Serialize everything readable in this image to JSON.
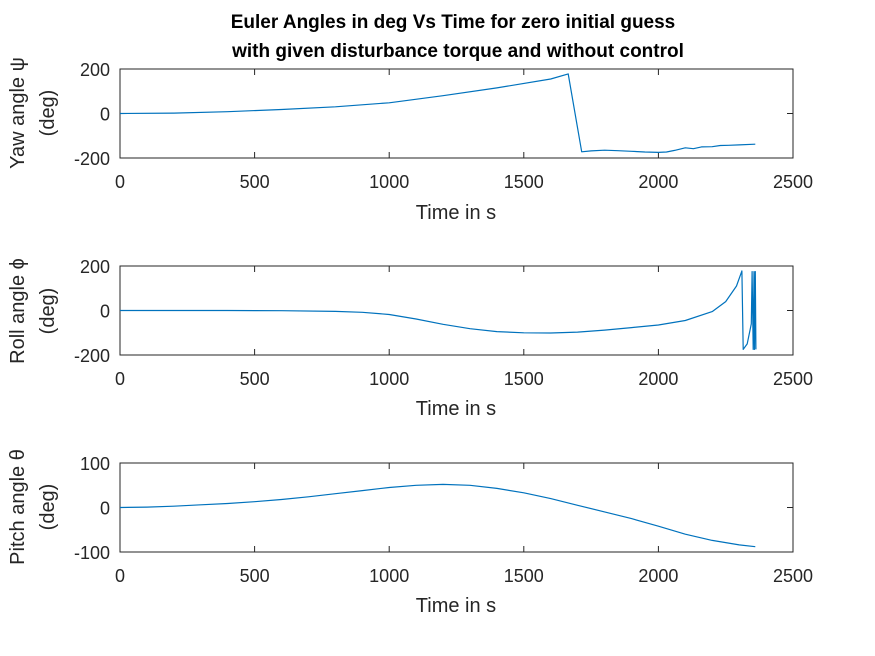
{
  "figure": {
    "title_line1": "Euler Angles in deg Vs Time for zero initial guess",
    "title_line2": "with given disturbance torque and without control"
  },
  "colors": {
    "series": "#0072BD",
    "axis": "#262626",
    "background": "#ffffff"
  },
  "chart_data": [
    {
      "type": "line",
      "ylabel_line1": "Yaw angle ψ",
      "ylabel_line2": "(deg)",
      "xlabel": "Time in s",
      "xlim": [
        0,
        2500
      ],
      "ylim": [
        -200,
        200
      ],
      "xticks": [
        0,
        500,
        1000,
        1500,
        2000,
        2500
      ],
      "yticks": [
        200,
        0,
        -200
      ],
      "grid": false,
      "series": [
        {
          "x": [
            0,
            200,
            400,
            600,
            800,
            1000,
            1200,
            1400,
            1600,
            1665,
            1715,
            1750,
            1800,
            1850,
            1900,
            1950,
            2000,
            2030,
            2060,
            2100,
            2130,
            2160,
            2200,
            2230,
            2260,
            2300,
            2360
          ],
          "y": [
            0,
            2,
            8,
            18,
            30,
            48,
            80,
            115,
            155,
            178,
            -172,
            -168,
            -165,
            -167,
            -170,
            -173,
            -175,
            -173,
            -166,
            -154,
            -158,
            -150,
            -149,
            -144,
            -143,
            -141,
            -138
          ]
        }
      ]
    },
    {
      "type": "line",
      "ylabel_line1": "Roll angle ϕ",
      "ylabel_line2": "(deg)",
      "xlabel": "Time in s",
      "xlim": [
        0,
        2500
      ],
      "ylim": [
        -200,
        200
      ],
      "xticks": [
        0,
        500,
        1000,
        1500,
        2000,
        2500
      ],
      "yticks": [
        200,
        0,
        -200
      ],
      "grid": false,
      "series": [
        {
          "x": [
            0,
            200,
            400,
            600,
            800,
            900,
            1000,
            1100,
            1200,
            1300,
            1400,
            1500,
            1600,
            1700,
            1800,
            1900,
            2000,
            2100,
            2200,
            2250,
            2290,
            2310,
            2315,
            2330,
            2345,
            2348,
            2352,
            2355,
            2357,
            2360,
            2362
          ],
          "y": [
            0,
            0,
            0,
            -1,
            -4,
            -8,
            -18,
            -38,
            -62,
            -82,
            -95,
            -100,
            -101,
            -97,
            -88,
            -77,
            -65,
            -45,
            -5,
            40,
            110,
            178,
            -175,
            -150,
            -60,
            175,
            -175,
            175,
            -175,
            175,
            -175
          ]
        }
      ]
    },
    {
      "type": "line",
      "ylabel_line1": "Pitch angle θ",
      "ylabel_line2": "(deg)",
      "xlabel": "Time in s",
      "xlim": [
        0,
        2500
      ],
      "ylim": [
        -100,
        100
      ],
      "xticks": [
        0,
        500,
        1000,
        1500,
        2000,
        2500
      ],
      "yticks": [
        100,
        0,
        -100
      ],
      "grid": false,
      "series": [
        {
          "x": [
            0,
            100,
            200,
            300,
            400,
            500,
            600,
            700,
            800,
            900,
            1000,
            1100,
            1200,
            1300,
            1400,
            1500,
            1600,
            1700,
            1800,
            1900,
            2000,
            2100,
            2200,
            2300,
            2360
          ],
          "y": [
            0,
            1,
            3,
            6,
            9,
            13,
            18,
            24,
            31,
            38,
            45,
            50,
            52,
            50,
            43,
            33,
            20,
            5,
            -10,
            -25,
            -42,
            -60,
            -74,
            -84,
            -88
          ]
        }
      ]
    }
  ]
}
